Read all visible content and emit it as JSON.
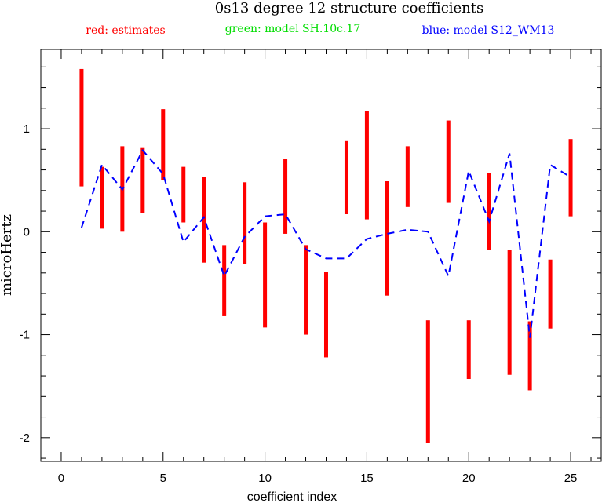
{
  "chart_data": {
    "type": "errorbar",
    "title": "0s13 degree 12 structure coefficients",
    "xlabel": "coefficient index",
    "ylabel": "microHertz",
    "xlim": [
      -1,
      26.5
    ],
    "ylim": [
      -2.23,
      1.77
    ],
    "xticks": [
      0,
      5,
      10,
      15,
      20,
      25
    ],
    "xticks_labels": [
      "0",
      "5",
      "10",
      "15",
      "20",
      "25"
    ],
    "yticks": [
      -2,
      -1,
      0,
      1
    ],
    "yticks_labels": [
      "-2",
      "-1",
      "0",
      "1"
    ],
    "grid": false,
    "legend": [
      {
        "label": "red: estimates",
        "color": "#ff0000"
      },
      {
        "label": "green: model SH.10c.17",
        "color": "#00dd00"
      },
      {
        "label": "blue: model S12_WM13",
        "color": "#0000ff"
      }
    ],
    "series": [
      {
        "name": "estimates",
        "color": "#ff0000",
        "style": "vertical-bars",
        "x": [
          1,
          2,
          3,
          4,
          5,
          6,
          7,
          8,
          9,
          10,
          11,
          12,
          13,
          14,
          15,
          16,
          17,
          18,
          19,
          20,
          21,
          22,
          23,
          24,
          25
        ],
        "low": [
          0.44,
          0.03,
          0.0,
          0.18,
          0.5,
          0.09,
          -0.3,
          -0.82,
          -0.31,
          -0.93,
          -0.02,
          -1.0,
          -1.22,
          0.17,
          0.12,
          -0.62,
          0.24,
          -2.05,
          0.28,
          -1.43,
          -0.18,
          -1.39,
          -1.54,
          -0.94,
          0.15
        ],
        "high": [
          1.58,
          0.63,
          0.83,
          0.82,
          1.19,
          0.63,
          0.53,
          -0.13,
          0.48,
          0.09,
          0.71,
          -0.13,
          -0.39,
          0.88,
          1.17,
          0.49,
          0.83,
          -0.86,
          1.08,
          -0.86,
          0.57,
          -0.18,
          -0.87,
          -0.27,
          0.9
        ]
      },
      {
        "name": "model S12_WM13",
        "color": "#0000ff",
        "style": "dashed-line",
        "x": [
          1,
          2,
          3,
          4,
          5,
          6,
          7,
          8,
          9,
          10,
          11,
          12,
          13,
          14,
          15,
          16,
          17,
          18,
          19,
          20,
          21,
          22,
          23,
          24,
          25
        ],
        "values": [
          0.04,
          0.65,
          0.41,
          0.79,
          0.56,
          -0.1,
          0.14,
          -0.43,
          -0.05,
          0.15,
          0.17,
          -0.17,
          -0.26,
          -0.26,
          -0.07,
          -0.02,
          0.02,
          0.0,
          -0.43,
          0.59,
          0.1,
          0.76,
          -1.03,
          0.65,
          0.53
        ]
      }
    ]
  }
}
